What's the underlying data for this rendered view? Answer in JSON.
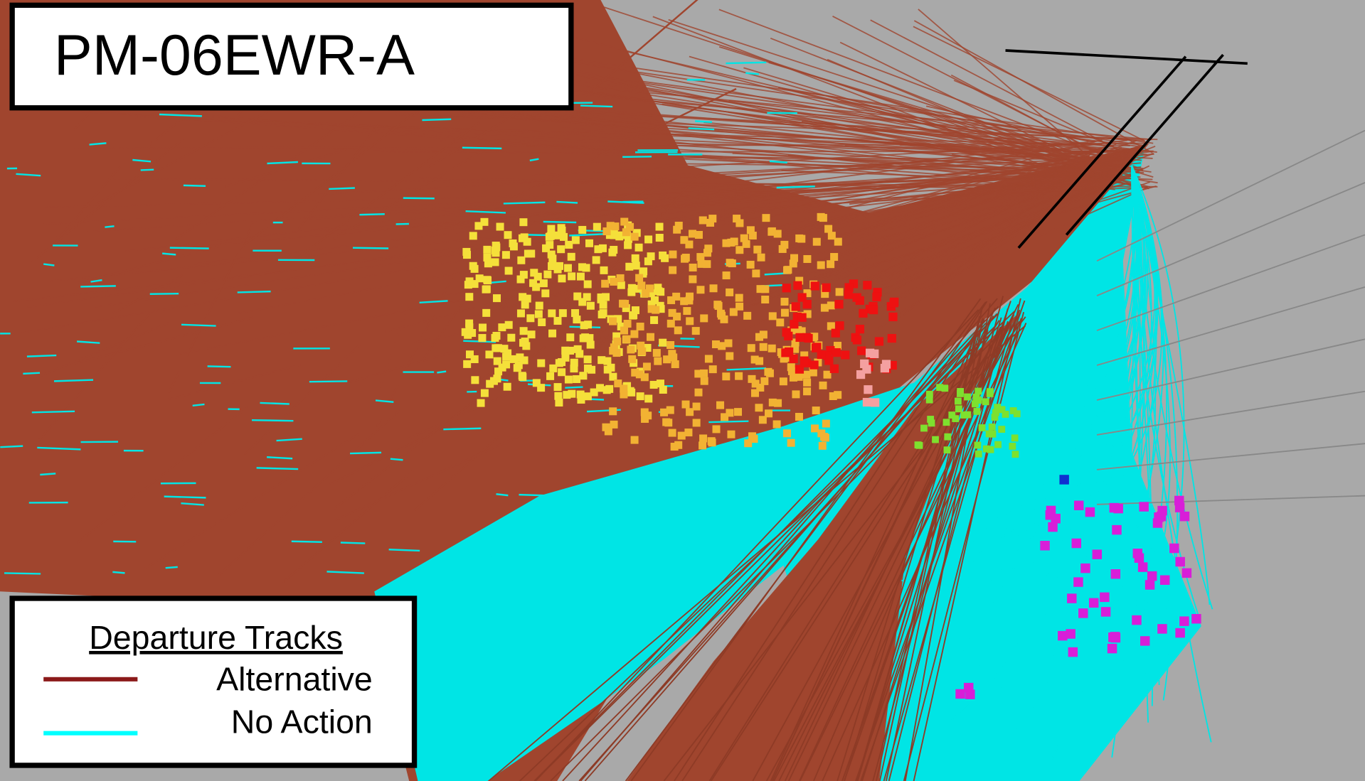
{
  "header": {
    "title": "PM-06EWR-A"
  },
  "legend": {
    "title": "Departure Tracks",
    "items": [
      "Alternative",
      "No Action"
    ]
  }
}
